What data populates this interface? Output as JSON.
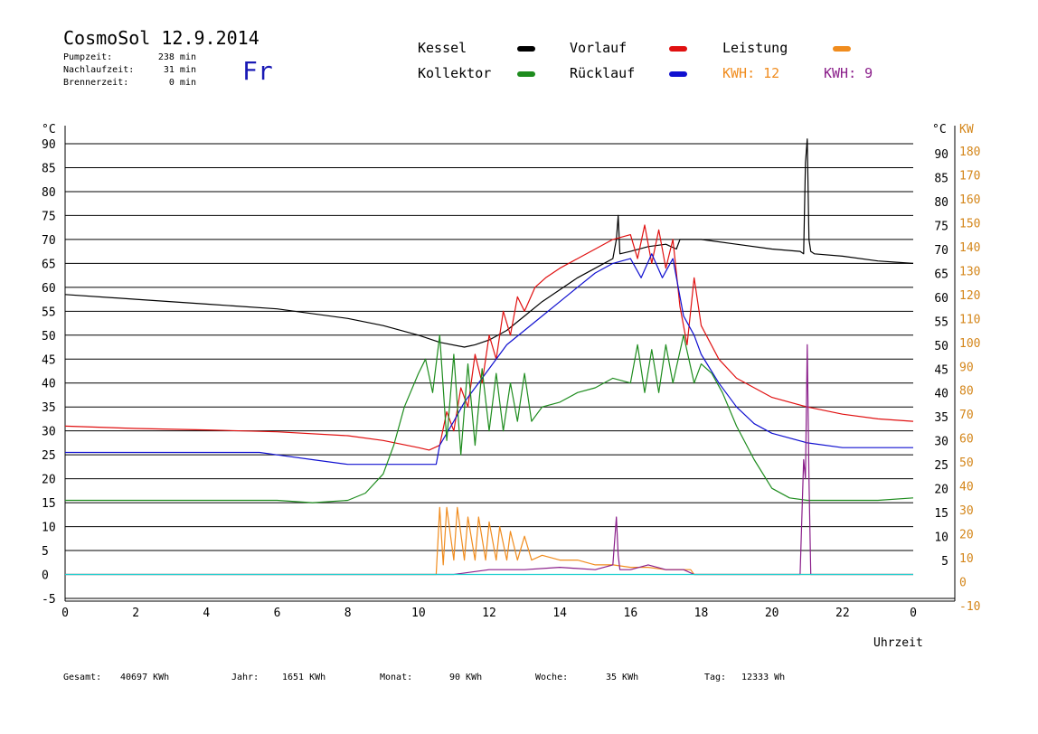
{
  "header": {
    "title": "CosmoSol 12.9.2014",
    "day": "Fr",
    "stats": [
      {
        "label": "Pumpzeit:",
        "value": "238 min"
      },
      {
        "label": "Nachlaufzeit:",
        "value": "31 min"
      },
      {
        "label": "Brennerzeit:",
        "value": "0 min"
      }
    ]
  },
  "legend": [
    {
      "label": "Kessel",
      "color": "#000000"
    },
    {
      "label": "Vorlauf",
      "color": "#e01010"
    },
    {
      "label": "Leistung",
      "color": "#f08c1e"
    },
    {
      "label": "Kollektor",
      "color": "#1e8c1e"
    },
    {
      "label": "Rücklauf",
      "color": "#1010d0"
    }
  ],
  "kwh": [
    {
      "label": "KWH: 12",
      "color": "#f08c1e"
    },
    {
      "label": "KWH: 9",
      "color": "#8a1e8a"
    }
  ],
  "footer": [
    {
      "label": "Gesamt:",
      "value": "40697 KWh"
    },
    {
      "label": "Jahr:",
      "value": "1651 KWh"
    },
    {
      "label": "Monat:",
      "value": "90 KWh"
    },
    {
      "label": "Woche:",
      "value": "35 KWh"
    },
    {
      "label": "Tag:",
      "value": "12333 Wh"
    }
  ],
  "chart_data": {
    "type": "line",
    "xlabel": "Uhrzeit",
    "left_unit": "°C",
    "right_unit_c": "°C",
    "right_unit_kw": "KW",
    "xlim": [
      0,
      24
    ],
    "ylim": [
      -5,
      90
    ],
    "y2lim": [
      -10,
      180
    ],
    "x_ticks": [
      "0",
      "2",
      "4",
      "6",
      "8",
      "10",
      "12",
      "14",
      "16",
      "18",
      "20",
      "22",
      "0"
    ],
    "y_ticks": [
      -5,
      0,
      5,
      10,
      15,
      20,
      25,
      30,
      35,
      40,
      45,
      50,
      55,
      60,
      65,
      70,
      75,
      80,
      85,
      90
    ],
    "y2_ticks": [
      -10,
      0,
      10,
      20,
      30,
      40,
      50,
      60,
      70,
      80,
      90,
      100,
      110,
      120,
      130,
      140,
      150,
      160,
      170,
      180
    ],
    "grid": true,
    "series": [
      {
        "name": "Kessel",
        "color": "#000000",
        "x": [
          0,
          2,
          4,
          6,
          8,
          9,
          10,
          10.6,
          11.3,
          11.6,
          12,
          12.5,
          13,
          13.5,
          14,
          14.5,
          15,
          15.5,
          15.6,
          15.65,
          15.7,
          16,
          16.5,
          17,
          17.3,
          17.4,
          18,
          19,
          20,
          20.8,
          20.9,
          20.95,
          21.0,
          21.05,
          21.1,
          21.2,
          22,
          23,
          24
        ],
        "y": [
          58.5,
          57.5,
          56.5,
          55.5,
          53.5,
          52,
          50,
          48.5,
          47.5,
          48,
          49,
          51,
          54,
          57,
          59.5,
          62,
          64,
          66,
          70,
          75,
          67,
          67.5,
          68.5,
          69,
          68,
          70,
          70,
          69,
          68,
          67.5,
          67,
          86,
          91,
          70,
          67.5,
          67,
          66.5,
          65.5,
          65
        ]
      },
      {
        "name": "Vorlauf",
        "color": "#e01010",
        "x": [
          0,
          2,
          4,
          6,
          8,
          9,
          10,
          10.3,
          10.6,
          10.8,
          11,
          11.2,
          11.4,
          11.6,
          11.8,
          12,
          12.2,
          12.4,
          12.6,
          12.8,
          13,
          13.3,
          13.6,
          14,
          14.5,
          15,
          15.5,
          16,
          16.2,
          16.4,
          16.6,
          16.8,
          17,
          17.2,
          17.4,
          17.6,
          17.8,
          18,
          18.5,
          19,
          20,
          21,
          22,
          23,
          24
        ],
        "y": [
          31,
          30.5,
          30.2,
          29.8,
          29,
          28,
          26.5,
          26,
          27,
          34,
          30,
          39,
          35,
          46,
          40,
          50,
          45,
          55,
          50,
          58,
          55,
          60,
          62,
          64,
          66,
          68,
          70,
          71,
          66,
          73,
          65,
          72,
          64,
          70,
          56,
          48,
          62,
          52,
          45,
          41,
          37,
          35,
          33.5,
          32.5,
          32
        ]
      },
      {
        "name": "Rücklauf",
        "color": "#1010d0",
        "x": [
          0,
          2,
          4,
          5.5,
          6,
          7,
          8,
          9,
          10,
          10.5,
          10.6,
          11,
          11.3,
          11.6,
          12,
          12.5,
          13,
          13.5,
          14,
          14.5,
          15,
          15.5,
          16,
          16.3,
          16.6,
          16.9,
          17.2,
          17.5,
          17.8,
          18,
          18.5,
          19,
          19.5,
          20,
          21,
          22,
          23,
          24
        ],
        "y": [
          25.5,
          25.5,
          25.5,
          25.5,
          25,
          24,
          23,
          23,
          23,
          23,
          27,
          32,
          36,
          39,
          43,
          48,
          51,
          54,
          57,
          60,
          63,
          65,
          66,
          62,
          67,
          62,
          66,
          54,
          50,
          46,
          40,
          35,
          31.5,
          29.5,
          27.5,
          26.5,
          26.5,
          26.5
        ]
      },
      {
        "name": "Kollektor",
        "color": "#1e8c1e",
        "x": [
          0,
          2,
          4,
          6,
          7,
          8,
          8.5,
          9,
          9.3,
          9.6,
          10,
          10.2,
          10.4,
          10.6,
          10.8,
          11,
          11.2,
          11.4,
          11.6,
          11.8,
          12,
          12.2,
          12.4,
          12.6,
          12.8,
          13,
          13.2,
          13.5,
          14,
          14.5,
          15,
          15.5,
          16,
          16.2,
          16.4,
          16.6,
          16.8,
          17,
          17.2,
          17.5,
          17.8,
          18,
          18.3,
          18.6,
          19,
          19.5,
          20,
          20.5,
          21,
          22,
          23,
          24
        ],
        "y": [
          15.5,
          15.5,
          15.5,
          15.5,
          15,
          15.5,
          17,
          21,
          27,
          35,
          42,
          45,
          38,
          50,
          28,
          46,
          25,
          44,
          27,
          43,
          30,
          42,
          30,
          40,
          32,
          42,
          32,
          35,
          36,
          38,
          39,
          41,
          40,
          48,
          38,
          47,
          38,
          48,
          40,
          50,
          40,
          44,
          42,
          38,
          31,
          24,
          18,
          16,
          15.5,
          15.5,
          15.5,
          16
        ]
      },
      {
        "name": "Leistung",
        "color": "#f08c1e",
        "x": [
          0,
          10.5,
          10.6,
          10.7,
          10.8,
          11,
          11.1,
          11.3,
          11.4,
          11.6,
          11.7,
          11.9,
          12,
          12.2,
          12.3,
          12.5,
          12.6,
          12.8,
          13,
          13.2,
          13.5,
          14,
          14.5,
          15,
          15.5,
          16,
          16.5,
          17,
          17.5,
          17.7,
          17.8,
          24
        ],
        "y": [
          0,
          0,
          14,
          2,
          14,
          3,
          14,
          3,
          12,
          3,
          12,
          3,
          11,
          3,
          10,
          3,
          9,
          3,
          8,
          3,
          4,
          3,
          3,
          2,
          2,
          1.5,
          1.5,
          1,
          1,
          1,
          0,
          0
        ]
      },
      {
        "name": "Purple",
        "color": "#8a1e8a",
        "x": [
          0,
          11,
          12,
          13,
          14,
          15,
          15.5,
          15.6,
          15.65,
          15.7,
          16,
          16.5,
          17,
          17.5,
          17.8,
          20.8,
          20.9,
          20.95,
          21.0,
          21.05,
          21.1,
          24
        ],
        "y": [
          0,
          0,
          1,
          1,
          1.5,
          1,
          2,
          12,
          4,
          1,
          1,
          2,
          1,
          1,
          0,
          0,
          24,
          20,
          48,
          20,
          0,
          0
        ]
      },
      {
        "name": "Cyan",
        "color": "#20d0d0",
        "x": [
          0,
          24
        ],
        "y": [
          0,
          0
        ]
      }
    ]
  }
}
